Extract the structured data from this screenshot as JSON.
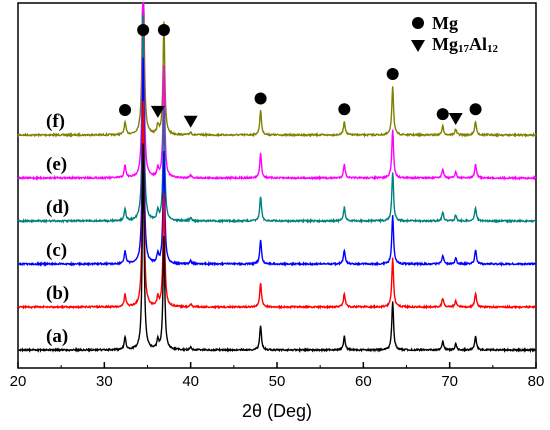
{
  "chart_data": {
    "type": "line",
    "title": "",
    "xlabel": "2θ (Deg)",
    "ylabel": "",
    "xlim": [
      20,
      80
    ],
    "x_ticks": [
      20,
      30,
      40,
      50,
      60,
      70,
      80
    ],
    "grid": false,
    "legend": {
      "placement": "top-right",
      "entries": [
        {
          "marker": "circle",
          "label": "Mg"
        },
        {
          "marker": "triangle-down",
          "label_main": "Mg",
          "label_sub1": "17",
          "label_mid": "Al",
          "label_sub2": "12"
        }
      ]
    },
    "peaks": [
      {
        "x": 32.4,
        "h": 0.25
      },
      {
        "x": 34.5,
        "h": 4.2
      },
      {
        "x": 36.2,
        "h": 0.18
      },
      {
        "x": 36.9,
        "h": 2.3
      },
      {
        "x": 40.0,
        "h": 0.06
      },
      {
        "x": 48.1,
        "h": 0.5
      },
      {
        "x": 57.8,
        "h": 0.28
      },
      {
        "x": 63.4,
        "h": 1.0
      },
      {
        "x": 69.2,
        "h": 0.18
      },
      {
        "x": 70.7,
        "h": 0.12
      },
      {
        "x": 73.0,
        "h": 0.28
      }
    ],
    "series": [
      {
        "name": "(a)",
        "color": "#000000",
        "offset": 0
      },
      {
        "name": "(b)",
        "color": "#ff0000",
        "offset": 1
      },
      {
        "name": "(c)",
        "color": "#0000ff",
        "offset": 2
      },
      {
        "name": "(d)",
        "color": "#008080",
        "offset": 3
      },
      {
        "name": "(e)",
        "color": "#ff00ff",
        "offset": 4
      },
      {
        "name": "(f)",
        "color": "#808000",
        "offset": 5
      }
    ],
    "annotations": {
      "circle_markers": [
        32.4,
        34.5,
        36.9,
        48.1,
        57.8,
        63.4,
        69.2,
        73.0
      ],
      "triangle_markers": [
        36.2,
        40.0,
        70.7
      ]
    }
  }
}
